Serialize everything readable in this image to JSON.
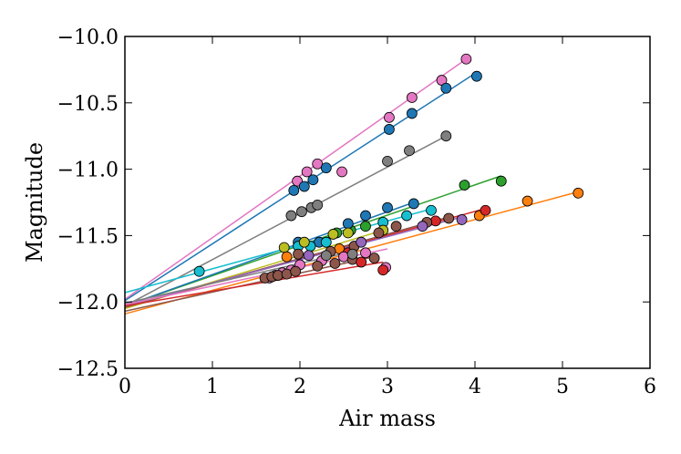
{
  "chart_data": {
    "type": "scatter",
    "title": "",
    "xlabel": "Air mass",
    "ylabel": "Magnitude",
    "xlim": [
      0,
      6
    ],
    "ylim": [
      -12.5,
      -10.0
    ],
    "y_inverted": true,
    "x_ticks": [
      0,
      1,
      2,
      3,
      4,
      5,
      6
    ],
    "x_tick_labels": [
      "0",
      "1",
      "2",
      "3",
      "4",
      "5",
      "6"
    ],
    "y_ticks": [
      -12.5,
      -12.0,
      -11.5,
      -11.0,
      -10.5,
      -10.0
    ],
    "y_tick_labels": [
      "−12.5",
      "−12.0",
      "−11.5",
      "−11.0",
      "−10.5",
      "−10.0"
    ],
    "grid": false,
    "legend": "none",
    "series": [
      {
        "name": "pink-1",
        "color": "#e377c2",
        "fit": [
          [
            0,
            -11.98
          ],
          [
            3.9,
            -10.17
          ]
        ],
        "points": [
          [
            1.97,
            -11.09
          ],
          [
            2.08,
            -11.02
          ],
          [
            2.2,
            -10.96
          ],
          [
            2.48,
            -11.02
          ],
          [
            3.02,
            -10.61
          ],
          [
            3.28,
            -10.46
          ],
          [
            3.62,
            -10.33
          ],
          [
            3.9,
            -10.17
          ]
        ]
      },
      {
        "name": "blue-1",
        "color": "#1f77b4",
        "fit": [
          [
            0,
            -11.99
          ],
          [
            4.02,
            -10.27
          ]
        ],
        "points": [
          [
            1.93,
            -11.16
          ],
          [
            2.05,
            -11.13
          ],
          [
            2.15,
            -11.08
          ],
          [
            2.3,
            -10.99
          ],
          [
            3.02,
            -10.7
          ],
          [
            3.28,
            -10.58
          ],
          [
            3.67,
            -10.39
          ],
          [
            4.02,
            -10.3
          ]
        ]
      },
      {
        "name": "gray-1",
        "color": "#7f7f7f",
        "fit": [
          [
            0,
            -12.03
          ],
          [
            3.67,
            -10.75
          ]
        ],
        "points": [
          [
            1.9,
            -11.35
          ],
          [
            2.02,
            -11.32
          ],
          [
            2.13,
            -11.29
          ],
          [
            2.2,
            -11.27
          ],
          [
            3.0,
            -10.94
          ],
          [
            3.25,
            -10.86
          ],
          [
            3.67,
            -10.75
          ]
        ]
      },
      {
        "name": "green-1",
        "color": "#2ca02c",
        "fit": [
          [
            0,
            -12.03
          ],
          [
            4.3,
            -11.05
          ]
        ],
        "points": [
          [
            2.42,
            -11.48
          ],
          [
            2.58,
            -11.46
          ],
          [
            2.75,
            -11.43
          ],
          [
            3.88,
            -11.12
          ],
          [
            4.3,
            -11.09
          ]
        ]
      },
      {
        "name": "blue-2",
        "color": "#1f77b4",
        "fit": [
          [
            0,
            -12.03
          ],
          [
            3.3,
            -11.25
          ]
        ],
        "points": [
          [
            1.98,
            -11.55
          ],
          [
            2.22,
            -11.55
          ],
          [
            2.55,
            -11.41
          ],
          [
            2.75,
            -11.35
          ],
          [
            3.0,
            -11.29
          ],
          [
            3.3,
            -11.26
          ]
        ]
      },
      {
        "name": "cyan-1",
        "color": "#17becf",
        "fit": [
          [
            0,
            -11.93
          ],
          [
            3.5,
            -11.3
          ]
        ],
        "points": [
          [
            0.85,
            -11.77
          ],
          [
            1.98,
            -11.58
          ],
          [
            2.12,
            -11.58
          ],
          [
            2.3,
            -11.55
          ],
          [
            2.95,
            -11.4
          ],
          [
            3.22,
            -11.35
          ],
          [
            3.5,
            -11.31
          ]
        ]
      },
      {
        "name": "olive-1",
        "color": "#bcbd22",
        "fit": [
          [
            0,
            -12.05
          ],
          [
            3.0,
            -11.45
          ]
        ],
        "points": [
          [
            1.82,
            -11.59
          ],
          [
            2.05,
            -11.55
          ],
          [
            2.38,
            -11.49
          ],
          [
            2.55,
            -11.48
          ],
          [
            2.95,
            -11.46
          ]
        ]
      },
      {
        "name": "orange-1",
        "color": "#ff7f0e",
        "fit": [
          [
            0,
            -12.09
          ],
          [
            5.18,
            -11.17
          ]
        ],
        "points": [
          [
            1.85,
            -11.66
          ],
          [
            2.45,
            -11.6
          ],
          [
            4.05,
            -11.35
          ],
          [
            4.6,
            -11.24
          ],
          [
            5.18,
            -11.18
          ]
        ]
      },
      {
        "name": "red-1",
        "color": "#d62728",
        "fit": [
          [
            0,
            -12.04
          ],
          [
            4.1,
            -11.3
          ]
        ],
        "points": [
          [
            2.55,
            -11.63
          ],
          [
            3.55,
            -11.39
          ],
          [
            4.12,
            -11.31
          ]
        ]
      },
      {
        "name": "brown-1",
        "color": "#8c564b",
        "fit": [
          [
            0,
            -12.04
          ],
          [
            3.7,
            -11.36
          ]
        ],
        "points": [
          [
            1.98,
            -11.64
          ],
          [
            2.35,
            -11.62
          ],
          [
            2.62,
            -11.58
          ],
          [
            2.9,
            -11.48
          ],
          [
            3.1,
            -11.43
          ],
          [
            3.45,
            -11.4
          ],
          [
            3.7,
            -11.37
          ]
        ]
      },
      {
        "name": "purple-1",
        "color": "#9467bd",
        "fit": [
          [
            0,
            -12.03
          ],
          [
            3.85,
            -11.36
          ]
        ],
        "points": [
          [
            2.1,
            -11.65
          ],
          [
            2.7,
            -11.55
          ],
          [
            3.4,
            -11.43
          ],
          [
            3.85,
            -11.38
          ]
        ]
      },
      {
        "name": "pink-2",
        "color": "#e377c2",
        "fit": [
          [
            0,
            -12.02
          ],
          [
            3.0,
            -11.6
          ]
        ],
        "points": [
          [
            1.65,
            -11.82
          ],
          [
            1.72,
            -11.8
          ],
          [
            1.8,
            -11.78
          ],
          [
            1.9,
            -11.76
          ],
          [
            2.0,
            -11.72
          ],
          [
            2.25,
            -11.69
          ],
          [
            2.5,
            -11.66
          ],
          [
            2.75,
            -11.63
          ],
          [
            2.98,
            -11.74
          ]
        ]
      },
      {
        "name": "brown-2",
        "color": "#8c564b",
        "fit": [
          [
            0,
            -12.07
          ],
          [
            2.85,
            -11.66
          ]
        ],
        "points": [
          [
            1.6,
            -11.82
          ],
          [
            1.68,
            -11.81
          ],
          [
            1.75,
            -11.8
          ],
          [
            1.85,
            -11.79
          ],
          [
            1.95,
            -11.77
          ],
          [
            2.2,
            -11.73
          ],
          [
            2.4,
            -11.71
          ],
          [
            2.6,
            -11.68
          ],
          [
            2.85,
            -11.67
          ]
        ]
      },
      {
        "name": "red-2",
        "color": "#d62728",
        "fit": [
          [
            0,
            -12.03
          ],
          [
            2.95,
            -11.7
          ]
        ],
        "points": [
          [
            2.7,
            -11.7
          ],
          [
            2.95,
            -11.76
          ]
        ]
      },
      {
        "name": "gray-2",
        "color": "#7f7f7f",
        "fit": [
          [
            0,
            -12.01
          ],
          [
            2.6,
            -11.62
          ]
        ],
        "points": [
          [
            2.3,
            -11.65
          ],
          [
            2.6,
            -11.64
          ]
        ]
      }
    ]
  }
}
